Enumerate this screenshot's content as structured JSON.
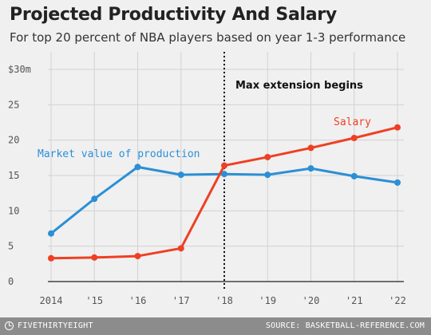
{
  "title": "Projected Productivity And Salary",
  "subtitle": "For top 20 percent of NBA players based on year 1-3 performance",
  "footer": {
    "brand": "FIVETHIRTYEIGHT",
    "brand_icon": "fivethirtyeight-logo-icon",
    "source": "SOURCE: BASKETBALL-REFERENCE.COM"
  },
  "chart_data": {
    "type": "line",
    "title": "Projected Productivity And Salary",
    "subtitle": "For top 20 percent of NBA players based on year 1-3 performance",
    "x": [
      "2014",
      "'15",
      "'16",
      "'17",
      "'18",
      "'19",
      "'20",
      "'21",
      "'22"
    ],
    "ylim": [
      0,
      30
    ],
    "yticks": [
      0,
      5,
      10,
      15,
      20,
      25,
      30
    ],
    "ytick_labels": [
      "0",
      "5",
      "10",
      "15",
      "20",
      "25",
      "$30m"
    ],
    "grid": true,
    "series": [
      {
        "name": "Market value of production",
        "color": "#2b8fd6",
        "values": [
          6.8,
          11.7,
          16.2,
          15.1,
          15.2,
          15.1,
          16.0,
          14.9,
          14.0
        ]
      },
      {
        "name": "Salary",
        "color": "#ef3f24",
        "values": [
          3.3,
          3.4,
          3.6,
          4.7,
          16.4,
          17.6,
          18.9,
          20.3,
          21.8
        ]
      }
    ],
    "annotations": [
      {
        "text": "Max extension begins",
        "x": "'18"
      }
    ]
  }
}
